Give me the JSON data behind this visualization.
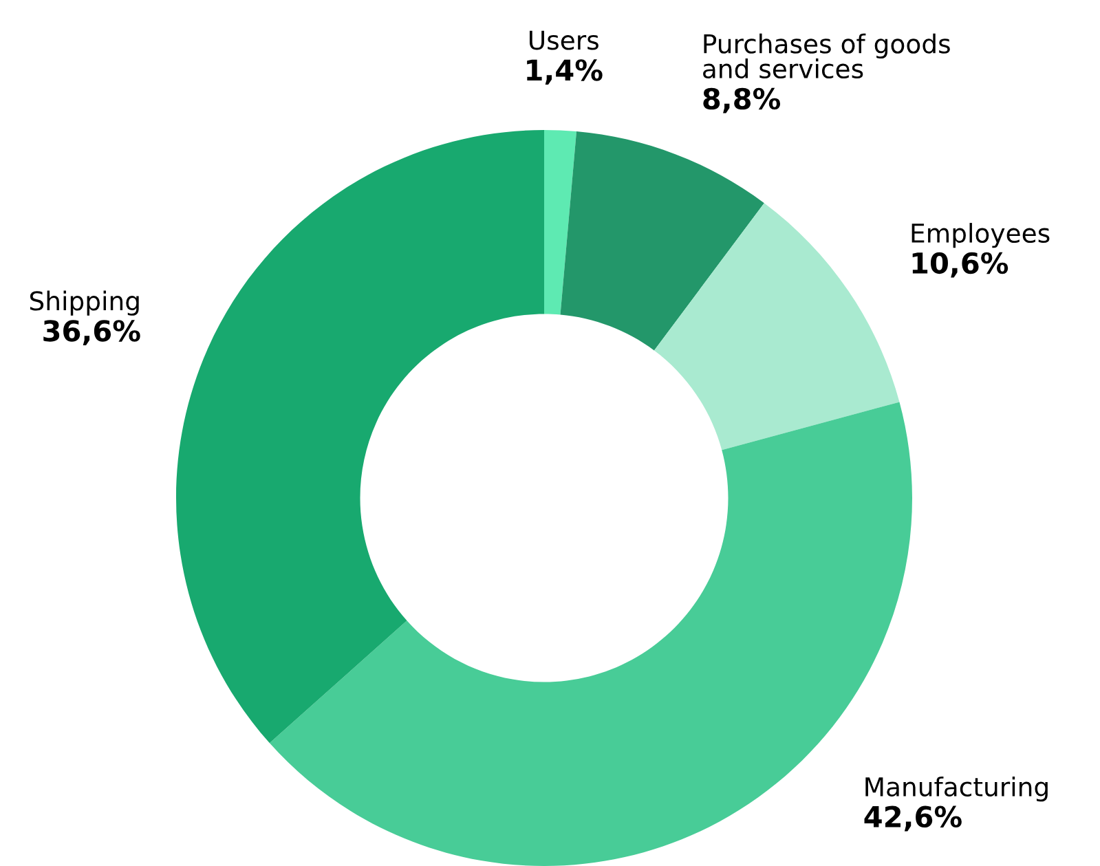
{
  "chart_data": {
    "type": "donut",
    "categories": [
      "Users",
      "Purchases of goods\nand services",
      "Employees",
      "Manufacturing",
      "Shipping"
    ],
    "values": [
      1.4,
      8.8,
      10.6,
      42.6,
      36.6
    ],
    "value_labels": [
      "1,4%",
      "8,8%",
      "10,6%",
      "42,6%",
      "36,6%"
    ],
    "colors": [
      "#5eeab2",
      "#23976a",
      "#a9ead0",
      "#48cc97",
      "#18a96f"
    ]
  }
}
